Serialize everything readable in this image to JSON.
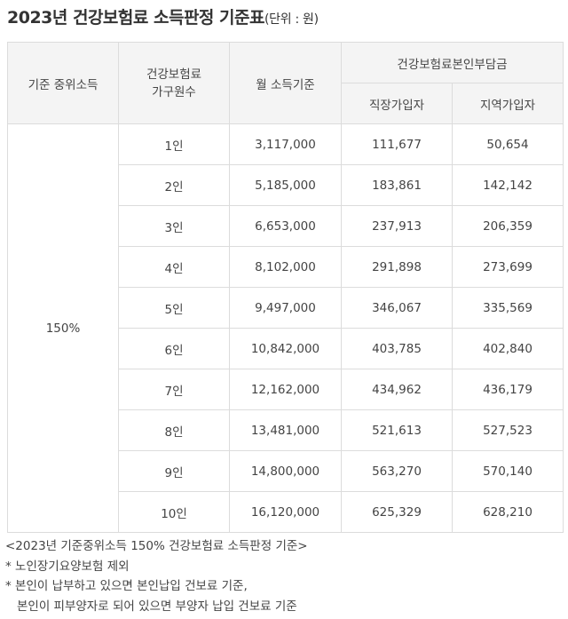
{
  "title": {
    "main": "2023년 건강보험료 소득판정 기준표",
    "unit": "(단위 : 원)"
  },
  "table": {
    "headers": {
      "col1": "기준 중위소득",
      "col2_line1": "건강보험료",
      "col2_line2": "가구원수",
      "col3": "월 소득기준",
      "group": "건강보험료본인부담금",
      "sub1": "직장가입자",
      "sub2": "지역가입자"
    },
    "median_label": "150%",
    "rows": [
      {
        "members": "1인",
        "income": "3,117,000",
        "employee": "111,677",
        "regional": "50,654"
      },
      {
        "members": "2인",
        "income": "5,185,000",
        "employee": "183,861",
        "regional": "142,142"
      },
      {
        "members": "3인",
        "income": "6,653,000",
        "employee": "237,913",
        "regional": "206,359"
      },
      {
        "members": "4인",
        "income": "8,102,000",
        "employee": "291,898",
        "regional": "273,699"
      },
      {
        "members": "5인",
        "income": "9,497,000",
        "employee": "346,067",
        "regional": "335,569"
      },
      {
        "members": "6인",
        "income": "10,842,000",
        "employee": "403,785",
        "regional": "402,840"
      },
      {
        "members": "7인",
        "income": "12,162,000",
        "employee": "434,962",
        "regional": "436,179"
      },
      {
        "members": "8인",
        "income": "13,481,000",
        "employee": "521,613",
        "regional": "527,523"
      },
      {
        "members": "9인",
        "income": "14,800,000",
        "employee": "563,270",
        "regional": "570,140"
      },
      {
        "members": "10인",
        "income": "16,120,000",
        "employee": "625,329",
        "regional": "628,210"
      }
    ]
  },
  "notes": {
    "line1": "<2023년 기준중위소득 150% 건강보험료 소득판정 기준>",
    "line2": "* 노인장기요양보험 제외",
    "line3": "* 본인이 납부하고 있으면 본인납입 건보료 기준,",
    "line4": "본인이 피부양자로 되어 있으면 부양자 납입 건보료 기준"
  },
  "colors": {
    "title_highlight": "#b7ece0",
    "header_bg": "#f4f4f4",
    "border": "#dcdcdc"
  }
}
